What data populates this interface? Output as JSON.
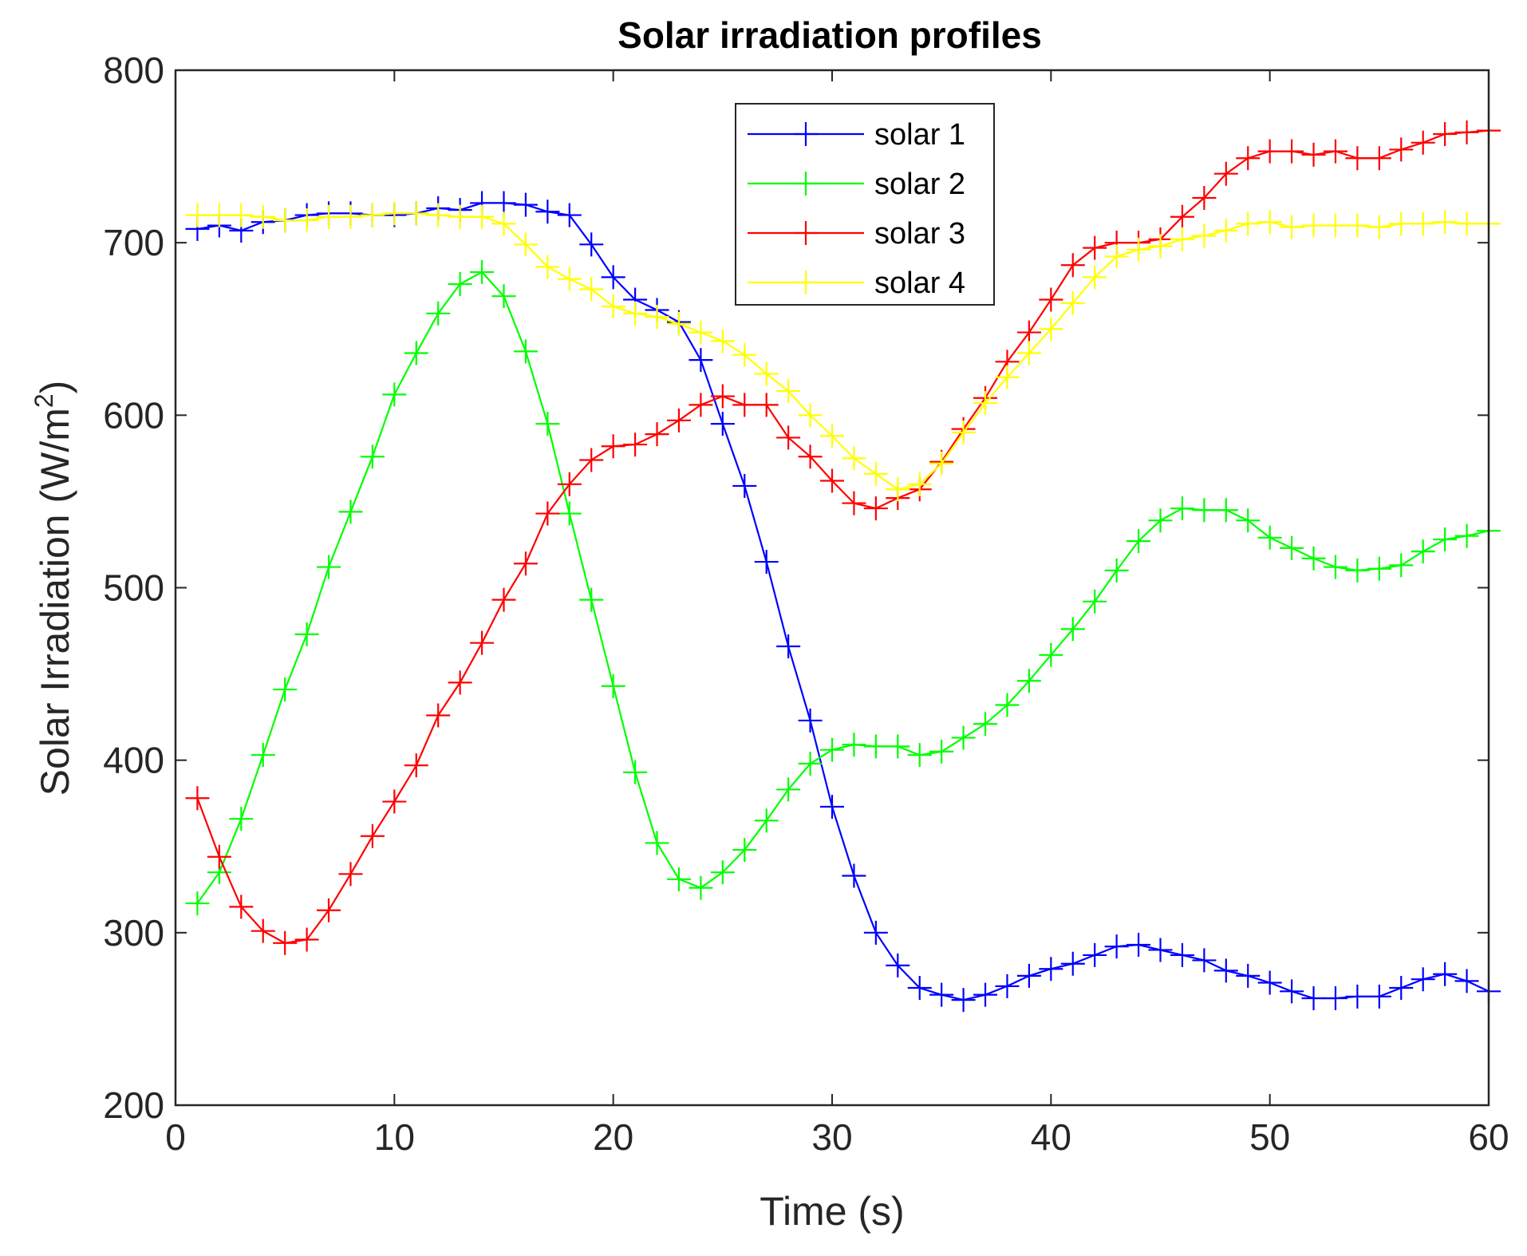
{
  "chart_data": {
    "type": "line",
    "title": "Solar irradiation profiles",
    "xlabel": "Time (s)",
    "ylabel": {
      "main": "Solar Irradiation (W/m",
      "sup": "2",
      "close": ")"
    },
    "xlim": [
      0,
      60
    ],
    "ylim": [
      200,
      800
    ],
    "xticks": [
      "0",
      "10",
      "20",
      "30",
      "40",
      "50",
      "60"
    ],
    "yticks": [
      "200",
      "300",
      "400",
      "500",
      "600",
      "700",
      "800"
    ],
    "legend_position": "top-center",
    "marker": "+",
    "x": [
      1,
      2,
      3,
      4,
      5,
      6,
      7,
      8,
      9,
      10,
      11,
      12,
      13,
      14,
      15,
      16,
      17,
      18,
      19,
      20,
      21,
      22,
      23,
      24,
      25,
      26,
      27,
      28,
      29,
      30,
      31,
      32,
      33,
      34,
      35,
      36,
      37,
      38,
      39,
      40,
      41,
      42,
      43,
      44,
      45,
      46,
      47,
      48,
      49,
      50,
      51,
      52,
      53,
      54,
      55,
      56,
      57,
      58,
      59,
      60
    ],
    "series": [
      {
        "name": "solar 1",
        "color": "#0000ff",
        "values": [
          708,
          710,
          707,
          712,
          713,
          716,
          717,
          717,
          716,
          716,
          717,
          720,
          719,
          723,
          723,
          722,
          718,
          716,
          699,
          680,
          667,
          661,
          654,
          632,
          595,
          559,
          515,
          466,
          423,
          373,
          333,
          300,
          281,
          268,
          264,
          261,
          264,
          269,
          275,
          279,
          282,
          287,
          292,
          293,
          290,
          287,
          284,
          278,
          275,
          271,
          266,
          262,
          262,
          263,
          263,
          268,
          273,
          276,
          272,
          266
        ]
      },
      {
        "name": "solar 2",
        "color": "#00ff00",
        "values": [
          317,
          335,
          366,
          403,
          441,
          473,
          512,
          544,
          576,
          612,
          636,
          659,
          676,
          683,
          669,
          637,
          595,
          543,
          493,
          443,
          393,
          352,
          331,
          326,
          335,
          348,
          365,
          383,
          398,
          406,
          409,
          408,
          408,
          403,
          405,
          413,
          421,
          432,
          446,
          461,
          476,
          492,
          510,
          527,
          539,
          546,
          545,
          545,
          539,
          529,
          523,
          517,
          512,
          510,
          511,
          513,
          521,
          528,
          530,
          533
        ]
      },
      {
        "name": "solar 3",
        "color": "#ff0000",
        "values": [
          378,
          344,
          315,
          301,
          294,
          296,
          313,
          334,
          356,
          376,
          397,
          426,
          445,
          468,
          493,
          514,
          543,
          560,
          574,
          582,
          583,
          589,
          597,
          606,
          611,
          606,
          606,
          587,
          576,
          562,
          549,
          546,
          552,
          557,
          573,
          592,
          610,
          631,
          648,
          667,
          687,
          697,
          700,
          700,
          702,
          715,
          726,
          740,
          749,
          753,
          753,
          751,
          753,
          749,
          749,
          754,
          758,
          763,
          764,
          765
        ]
      },
      {
        "name": "solar 4",
        "color": "#ffff00",
        "values": [
          716,
          716,
          716,
          715,
          713,
          713,
          715,
          715,
          716,
          717,
          717,
          716,
          715,
          715,
          711,
          699,
          686,
          679,
          673,
          663,
          659,
          657,
          653,
          648,
          643,
          635,
          624,
          614,
          600,
          588,
          575,
          566,
          557,
          560,
          572,
          590,
          607,
          622,
          636,
          650,
          665,
          680,
          692,
          696,
          698,
          702,
          704,
          707,
          711,
          712,
          709,
          710,
          710,
          710,
          709,
          711,
          711,
          712,
          711,
          711
        ]
      }
    ]
  }
}
